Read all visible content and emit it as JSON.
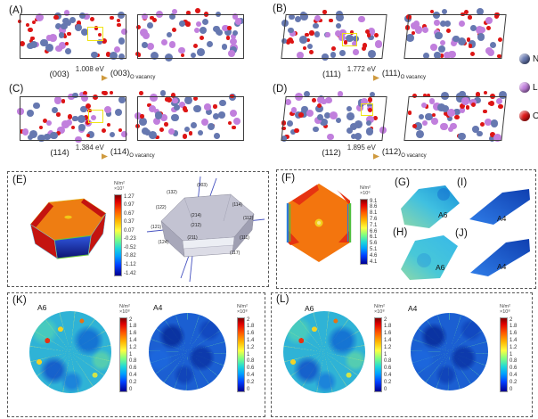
{
  "panels": {
    "A": {
      "label": "(A)",
      "energy": "1.008 eV",
      "lhs": "(003)",
      "rhs": "(003)",
      "sub": "O vacancy"
    },
    "B": {
      "label": "(B)",
      "energy": "1.772 eV",
      "lhs": "(111)",
      "rhs": "(111)",
      "sub": "O vacancy"
    },
    "C": {
      "label": "(C)",
      "energy": "1.384 eV",
      "lhs": "(114)",
      "rhs": "(114)",
      "sub": "O vacancy"
    },
    "D": {
      "label": "(D)",
      "energy": "1.895 eV",
      "lhs": "(112)",
      "rhs": "(112)",
      "sub": "O vacancy"
    }
  },
  "legend": {
    "items": [
      {
        "label": "Ni",
        "color": "#6678b0"
      },
      {
        "label": "La",
        "color": "#c17fdd"
      },
      {
        "label": "O",
        "color": "#dd1515"
      }
    ]
  },
  "E": {
    "label": "(E)",
    "colorbar": {
      "unit": "N/m²",
      "scale": "×10⁷",
      "ticks": [
        "1.27",
        "0.97",
        "0.67",
        "0.37",
        "0.07",
        "-0.23",
        "-0.52",
        "-0.82",
        "-1.12",
        "-1.42"
      ]
    },
    "facets": [
      "(003)",
      "(132)",
      "(114)",
      "(112)",
      "(111)",
      "(117)",
      "(214)",
      "(212)",
      "(211)",
      "(122)",
      "(121)",
      "(124)"
    ]
  },
  "F": {
    "label": "(F)",
    "colorbar": {
      "unit": "N/m²",
      "scale": "×10⁶",
      "ticks": [
        "9.1",
        "8.6",
        "8.1",
        "7.6",
        "7.1",
        "6.6",
        "6.1",
        "5.6",
        "5.1",
        "4.6",
        "4.1"
      ]
    }
  },
  "G": {
    "label": "(G)",
    "tag": "A6"
  },
  "H": {
    "label": "(H)",
    "tag": "A6"
  },
  "I": {
    "label": "(I)",
    "tag": "A4"
  },
  "J": {
    "label": "(J)",
    "tag": "A4"
  },
  "K": {
    "label": "(K)",
    "maps": [
      {
        "tag": "A6"
      },
      {
        "tag": "A4"
      }
    ]
  },
  "L": {
    "label": "(L)",
    "maps": [
      {
        "tag": "A6"
      },
      {
        "tag": "A4"
      }
    ]
  },
  "KL_colorbar": {
    "unit": "N/m²",
    "scale": "×10⁸",
    "ticks": [
      "2",
      "1.8",
      "1.6",
      "1.4",
      "1.2",
      "1",
      "0.8",
      "0.6",
      "0.4",
      "0.2",
      "0"
    ]
  },
  "vacancy_box_color": "#f0e414"
}
